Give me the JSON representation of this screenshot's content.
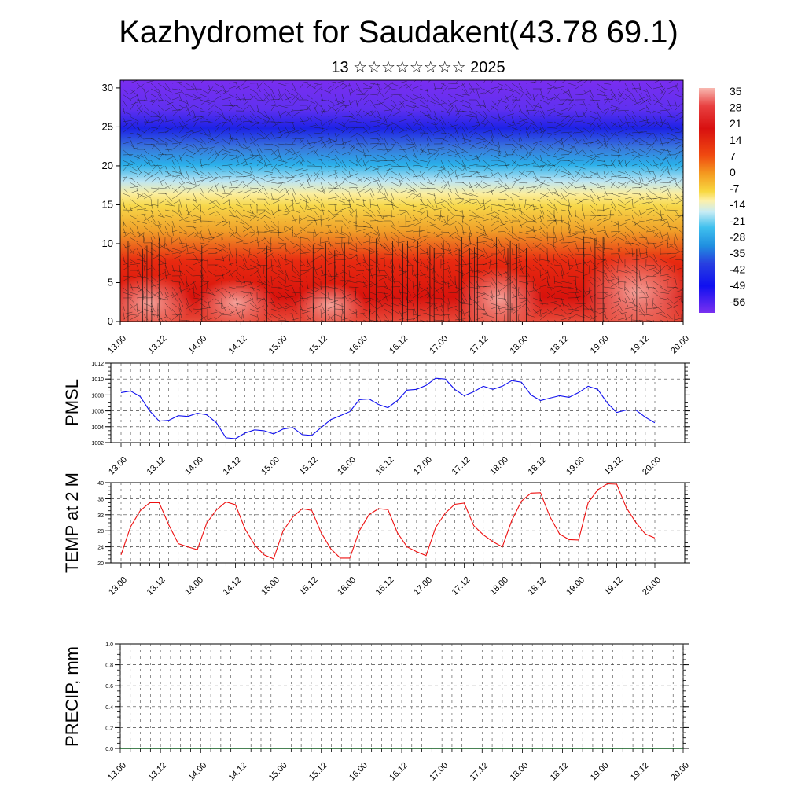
{
  "title": "Kazhydromet for Saudakent(43.78 69.1)",
  "subtitle": "13 ☆☆☆☆☆☆☆☆ 2025",
  "colors": {
    "pmsl_line": "#1010ee",
    "temp_line": "#ee1010",
    "precip_line": "#0a5a1a",
    "frame": "#000000"
  },
  "chart_data": [
    {
      "id": "cross-section",
      "type": "heatmap",
      "xlabel": "",
      "ylabel": "",
      "x_ticks": [
        "13.00",
        "13.12",
        "14.00",
        "14.12",
        "15.00",
        "15.12",
        "16.00",
        "16.12",
        "17.00",
        "17.12",
        "18.00",
        "18.12",
        "19.00",
        "19.12",
        "20.00"
      ],
      "y_ticks": [
        0,
        5,
        10,
        15,
        20,
        25,
        30
      ],
      "ylim": [
        0,
        31
      ],
      "colorbar_labels": [
        "35",
        "28",
        "21",
        "14",
        "7",
        "0",
        "-7",
        "-14",
        "-21",
        "-28",
        "-35",
        "-42",
        "-49",
        "-56"
      ],
      "colorbar_range": [
        -60,
        38
      ],
      "overlay": "wind barbs"
    },
    {
      "id": "pmsl",
      "type": "line",
      "ylabel": "PMSL",
      "ylim": [
        1002,
        1012
      ],
      "y_ticks": [
        1002,
        1004,
        1006,
        1008,
        1010,
        1012
      ],
      "x_ticks": [
        "13.00",
        "13.12",
        "14.00",
        "14.12",
        "15.00",
        "15.12",
        "16.00",
        "16.12",
        "17.00",
        "17.12",
        "18.00",
        "18.12",
        "19.00",
        "19.12",
        "20.00"
      ],
      "series": [
        {
          "values": [
            1008.3,
            1008.5,
            1007.8,
            1006.0,
            1004.7,
            1004.8,
            1005.4,
            1005.3,
            1005.7,
            1005.5,
            1004.5,
            1002.6,
            1002.5,
            1003.2,
            1003.6,
            1003.5,
            1003.1,
            1003.7,
            1003.9,
            1003.0,
            1002.9,
            1003.9,
            1004.9,
            1005.4,
            1005.9,
            1007.4,
            1007.5,
            1006.8,
            1006.4,
            1007.3,
            1008.6,
            1008.7,
            1009.2,
            1010.1,
            1010.0,
            1008.7,
            1007.9,
            1008.4,
            1009.1,
            1008.7,
            1009.1,
            1009.8,
            1009.6,
            1008.0,
            1007.3,
            1007.6,
            1007.9,
            1007.7,
            1008.3,
            1009.1,
            1008.7,
            1007.0,
            1005.8,
            1006.1,
            1006.1,
            1005.2,
            1004.5
          ]
        }
      ]
    },
    {
      "id": "temp2m",
      "type": "line",
      "ylabel": "TEMP at 2 M",
      "ylim": [
        20,
        40
      ],
      "y_ticks": [
        20,
        24,
        28,
        32,
        36,
        40
      ],
      "x_ticks": [
        "13.00",
        "13.12",
        "14.00",
        "14.12",
        "15.00",
        "15.12",
        "16.00",
        "16.12",
        "17.00",
        "17.12",
        "18.00",
        "18.12",
        "19.00",
        "19.12",
        "20.00"
      ],
      "series": [
        {
          "values": [
            22.0,
            29.0,
            33.0,
            35.0,
            35.0,
            29.5,
            24.8,
            24.0,
            23.3,
            30.0,
            33.2,
            35.2,
            34.5,
            28.5,
            24.5,
            22.0,
            21.0,
            28.0,
            31.4,
            33.5,
            33.1,
            27.5,
            23.5,
            21.2,
            21.2,
            28.0,
            32.0,
            33.5,
            33.3,
            27.5,
            24.0,
            22.8,
            21.8,
            28.8,
            32.4,
            34.6,
            34.9,
            29.3,
            27.0,
            25.3,
            24.0,
            30.6,
            35.4,
            37.4,
            37.5,
            31.5,
            27.2,
            25.8,
            25.7,
            35.0,
            38.2,
            39.7,
            39.6,
            33.8,
            30.1,
            27.2,
            26.2
          ]
        }
      ]
    },
    {
      "id": "precip",
      "type": "line",
      "ylabel": "PRECIP, mm",
      "ylim": [
        0.0,
        1.0
      ],
      "y_ticks": [
        "0.0",
        "0.2",
        "0.4",
        "0.6",
        "0.8",
        "1.0"
      ],
      "x_ticks": [
        "13.00",
        "13.12",
        "14.00",
        "14.12",
        "15.00",
        "15.12",
        "16.00",
        "16.12",
        "17.00",
        "17.12",
        "18.00",
        "18.12",
        "19.00",
        "19.12",
        "20.00"
      ],
      "series": [
        {
          "values": [
            0,
            0,
            0,
            0,
            0,
            0,
            0,
            0,
            0,
            0,
            0,
            0,
            0,
            0,
            0,
            0,
            0,
            0,
            0,
            0,
            0,
            0,
            0,
            0,
            0,
            0,
            0,
            0,
            0,
            0,
            0,
            0,
            0,
            0,
            0,
            0,
            0,
            0,
            0,
            0,
            0,
            0,
            0,
            0,
            0,
            0,
            0,
            0,
            0,
            0,
            0,
            0,
            0,
            0,
            0,
            0,
            0
          ]
        }
      ]
    }
  ]
}
